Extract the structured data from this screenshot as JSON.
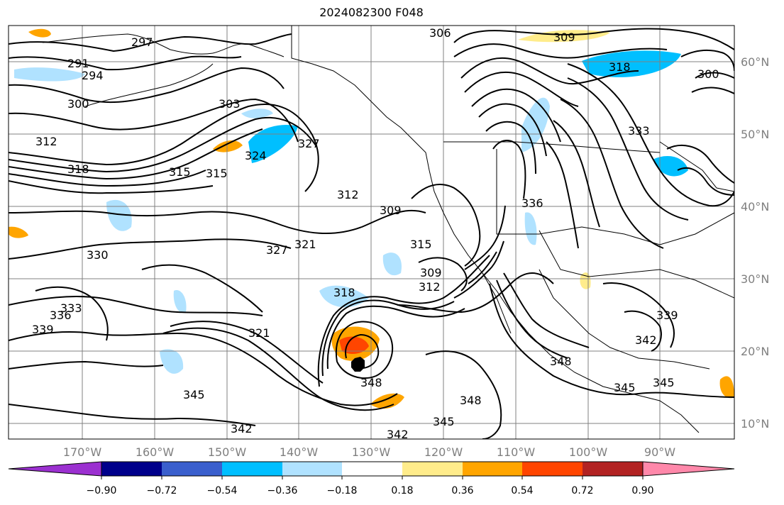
{
  "title": "2024082300 F048",
  "longitude_labels": [
    "170°W",
    "160°W",
    "150°W",
    "140°W",
    "130°W",
    "120°W",
    "110°W",
    "100°W",
    "90°W"
  ],
  "latitude_labels": [
    "60°N",
    "50°N",
    "40°N",
    "30°N",
    "20°N",
    "10°N"
  ],
  "contour_labels": [
    "291",
    "294",
    "297",
    "300",
    "303",
    "306",
    "309",
    "312",
    "315",
    "318",
    "321",
    "324",
    "327",
    "330",
    "333",
    "336",
    "339",
    "342",
    "345",
    "348"
  ],
  "colorbar": {
    "ticks": [
      "−0.90",
      "−0.72",
      "−0.54",
      "−0.36",
      "−0.18",
      "0.18",
      "0.36",
      "0.54",
      "0.72",
      "0.90"
    ],
    "colors": [
      "#9b30d0",
      "#00008b",
      "#3a5fcd",
      "#00bfff",
      "#b0e2ff",
      "#ffffff",
      "#ffec8b",
      "#ffa500",
      "#ff4500",
      "#b22222",
      "#ff88aa"
    ]
  }
}
